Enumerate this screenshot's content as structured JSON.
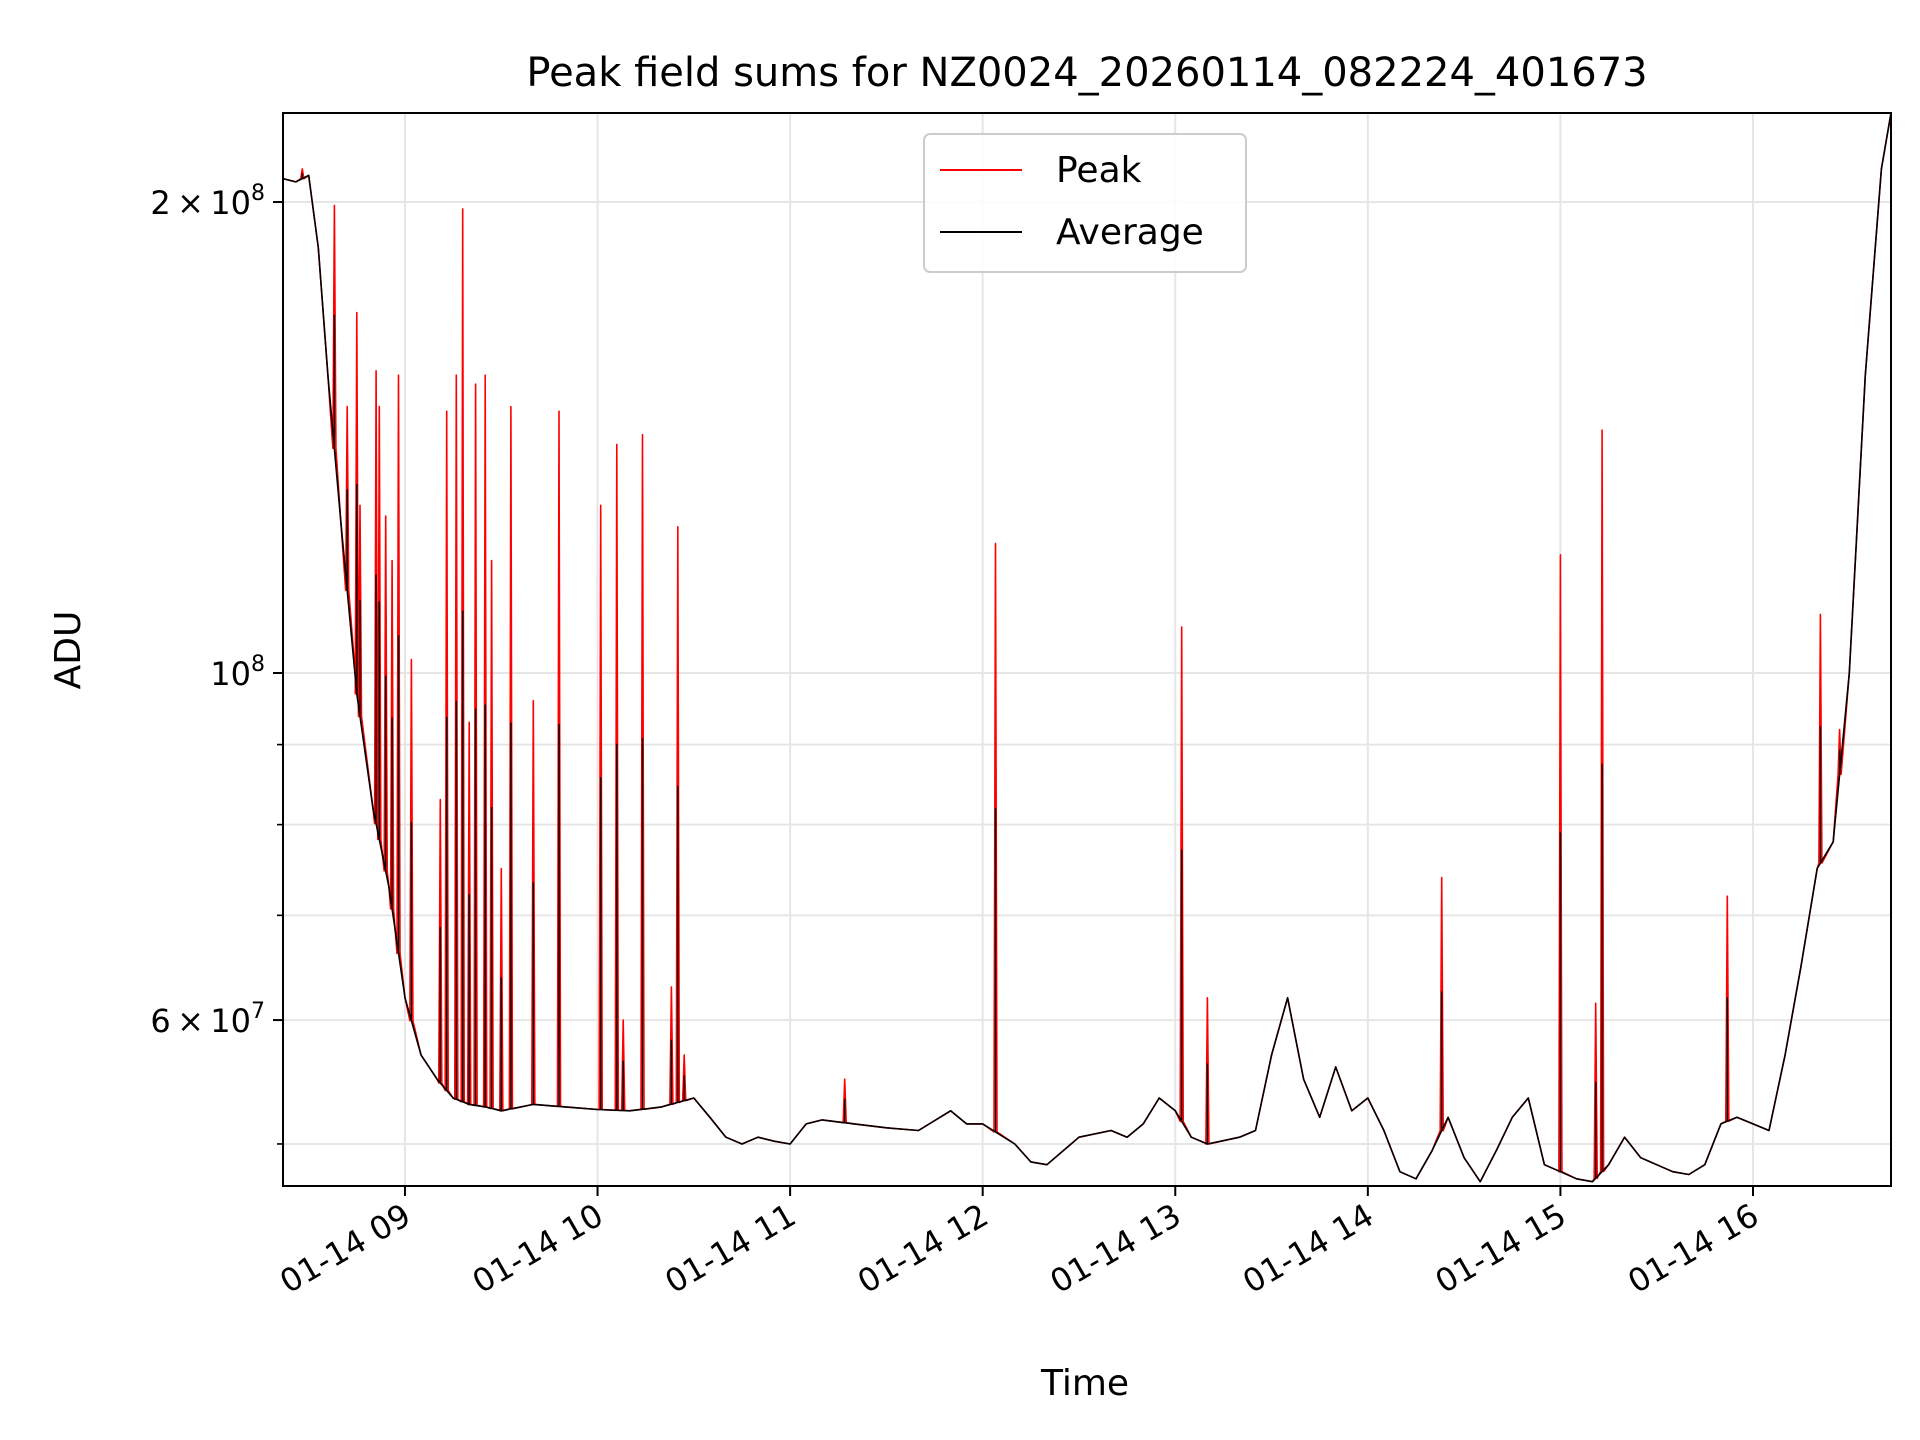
{
  "chart_data": {
    "type": "line",
    "title": "Peak field sums for NZ0024_20260114_082224_401673",
    "xlabel": "Time",
    "ylabel": "ADU",
    "xlim": [
      "01-14 08:22",
      "01-14 16:43"
    ],
    "ylim": [
      47000000,
      228000000
    ],
    "yscale": "log",
    "grid": true,
    "legend": {
      "placement": "top-center",
      "entries": [
        "Peak",
        "Average"
      ]
    },
    "x_ticks": [
      "01-14 09",
      "01-14 10",
      "01-14 11",
      "01-14 12",
      "01-14 13",
      "01-14 14",
      "01-14 15",
      "01-14 16"
    ],
    "y_tick_labels": [
      {
        "value": 200000000,
        "mantissa": "2",
        "exponent": "8"
      },
      {
        "value": 100000000,
        "mantissa": "",
        "exponent": "8"
      },
      {
        "value": 60000000,
        "mantissa": "6",
        "exponent": "7"
      }
    ],
    "y_minor_ticks": [
      50000000,
      70000000,
      80000000,
      90000000
    ],
    "colors": {
      "Peak": "#ff0000",
      "Average": "#000000"
    },
    "series": [
      {
        "name": "Average",
        "x": [
          "01-14 08:22",
          "01-14 08:26",
          "01-14 08:30",
          "01-14 08:33",
          "01-14 08:36",
          "01-14 08:40",
          "01-14 08:45",
          "01-14 08:50",
          "01-14 08:55",
          "01-14 09:00",
          "01-14 09:05",
          "01-14 09:10",
          "01-14 09:15",
          "01-14 09:20",
          "01-14 09:25",
          "01-14 09:30",
          "01-14 09:40",
          "01-14 09:50",
          "01-14 10:00",
          "01-14 10:10",
          "01-14 10:20",
          "01-14 10:30",
          "01-14 10:35",
          "01-14 10:40",
          "01-14 10:45",
          "01-14 10:50",
          "01-14 10:55",
          "01-14 11:00",
          "01-14 11:05",
          "01-14 11:10",
          "01-14 11:20",
          "01-14 11:30",
          "01-14 11:40",
          "01-14 11:50",
          "01-14 11:55",
          "01-14 12:00",
          "01-14 12:10",
          "01-14 12:15",
          "01-14 12:20",
          "01-14 12:30",
          "01-14 12:40",
          "01-14 12:45",
          "01-14 12:50",
          "01-14 12:55",
          "01-14 13:00",
          "01-14 13:05",
          "01-14 13:10",
          "01-14 13:20",
          "01-14 13:25",
          "01-14 13:30",
          "01-14 13:35",
          "01-14 13:40",
          "01-14 13:45",
          "01-14 13:50",
          "01-14 13:55",
          "01-14 14:00",
          "01-14 14:05",
          "01-14 14:10",
          "01-14 14:15",
          "01-14 14:20",
          "01-14 14:25",
          "01-14 14:30",
          "01-14 14:35",
          "01-14 14:40",
          "01-14 14:45",
          "01-14 14:50",
          "01-14 14:55",
          "01-14 15:00",
          "01-14 15:05",
          "01-14 15:10",
          "01-14 15:15",
          "01-14 15:20",
          "01-14 15:25",
          "01-14 15:30",
          "01-14 15:35",
          "01-14 15:40",
          "01-14 15:45",
          "01-14 15:50",
          "01-14 15:55",
          "01-14 16:00",
          "01-14 16:05",
          "01-14 16:10",
          "01-14 16:15",
          "01-14 16:20",
          "01-14 16:25",
          "01-14 16:30",
          "01-14 16:35",
          "01-14 16:40",
          "01-14 16:43"
        ],
        "y": [
          207000000,
          206000000,
          208000000,
          187000000,
          155000000,
          125000000,
          97000000,
          82000000,
          73000000,
          62000000,
          57000000,
          55000000,
          53500000,
          53000000,
          52800000,
          52500000,
          53000000,
          52800000,
          52600000,
          52500000,
          52800000,
          53500000,
          52000000,
          50500000,
          50000000,
          50500000,
          50200000,
          50000000,
          51500000,
          51800000,
          51500000,
          51200000,
          51000000,
          52500000,
          51500000,
          51500000,
          50000000,
          48700000,
          48500000,
          50500000,
          51000000,
          50500000,
          51500000,
          53500000,
          52500000,
          50500000,
          50000000,
          50500000,
          51000000,
          57000000,
          62000000,
          55000000,
          52000000,
          56000000,
          52500000,
          53500000,
          51000000,
          48000000,
          47500000,
          49500000,
          52000000,
          49000000,
          47300000,
          49500000,
          52000000,
          53500000,
          48500000,
          48000000,
          47500000,
          47300000,
          48500000,
          50500000,
          49000000,
          48500000,
          48000000,
          47800000,
          48500000,
          51500000,
          52000000,
          51500000,
          51000000,
          57000000,
          65000000,
          75000000,
          78000000,
          100000000,
          155000000,
          210000000,
          228000000
        ]
      },
      {
        "name": "Peak",
        "x": [
          "01-14 08:28",
          "01-14 08:38",
          "01-14 08:42",
          "01-14 08:45",
          "01-14 08:46",
          "01-14 08:51",
          "01-14 08:52",
          "01-14 08:54",
          "01-14 08:56",
          "01-14 08:58",
          "01-14 09:02",
          "01-14 09:11",
          "01-14 09:13",
          "01-14 09:16",
          "01-14 09:18",
          "01-14 09:20",
          "01-14 09:22",
          "01-14 09:25",
          "01-14 09:27",
          "01-14 09:30",
          "01-14 09:33",
          "01-14 09:40",
          "01-14 09:48",
          "01-14 10:01",
          "01-14 10:06",
          "01-14 10:08",
          "01-14 10:14",
          "01-14 10:23",
          "01-14 10:25",
          "01-14 10:27",
          "01-14 11:17",
          "01-14 12:04",
          "01-14 13:02",
          "01-14 13:10",
          "01-14 14:23",
          "01-14 15:00",
          "01-14 15:11",
          "01-14 15:13",
          "01-14 15:52",
          "01-14 16:21",
          "01-14 16:27"
        ],
        "y": [
          210000000,
          199000000,
          148000000,
          170000000,
          128000000,
          156000000,
          148000000,
          126000000,
          118000000,
          155000000,
          102000000,
          83000000,
          147000000,
          155000000,
          198000000,
          93000000,
          153000000,
          155000000,
          118000000,
          75000000,
          148000000,
          96000000,
          147000000,
          128000000,
          140000000,
          60000000,
          142000000,
          63000000,
          124000000,
          57000000,
          55000000,
          121000000,
          107000000,
          62000000,
          74000000,
          119000000,
          61500000,
          143000000,
          72000000,
          109000000,
          92000000
        ]
      }
    ]
  }
}
